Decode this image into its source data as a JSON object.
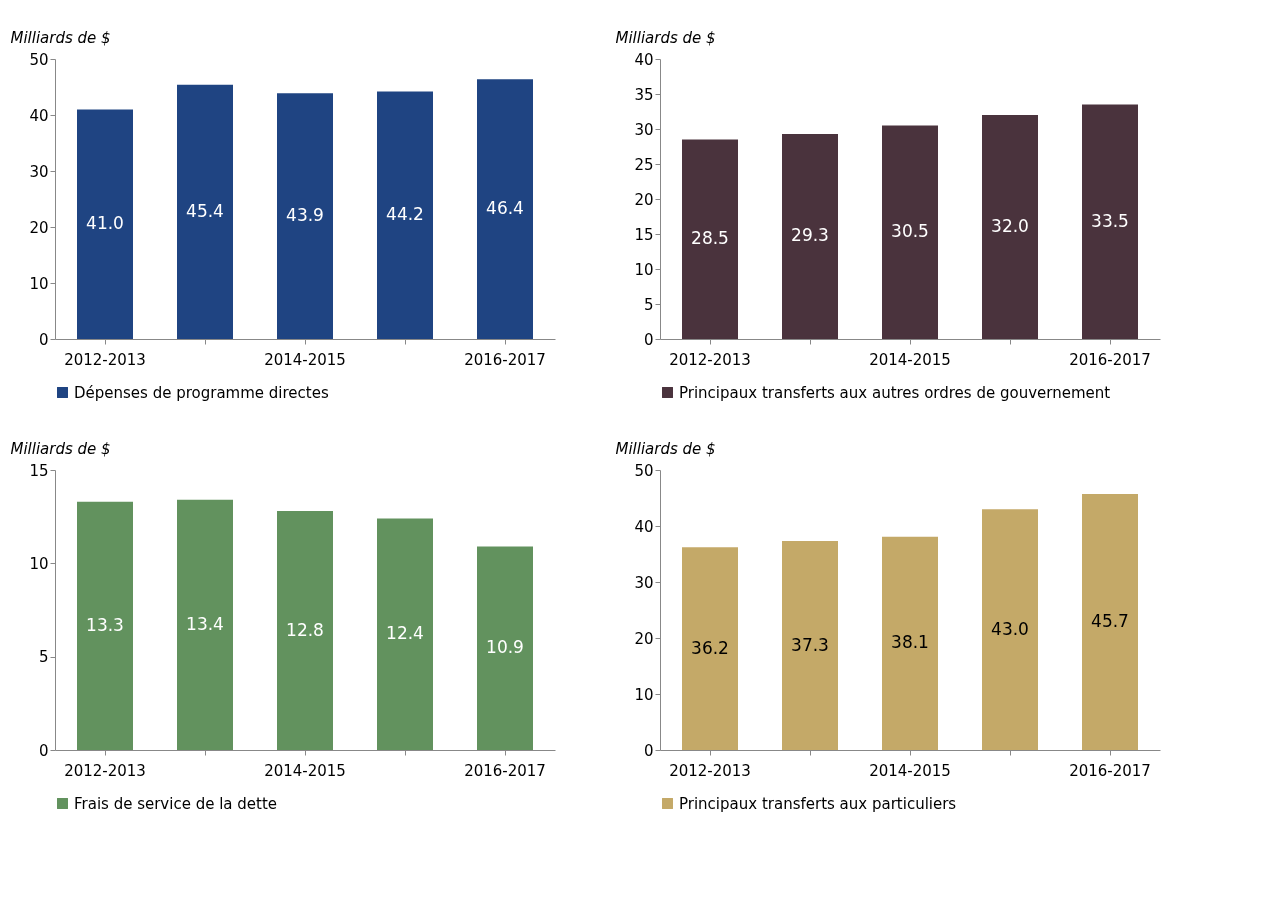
{
  "chart_data": [
    {
      "type": "bar",
      "ylabel": "Milliards de $",
      "categories": [
        "2012-2013",
        null,
        "2014-2015",
        null,
        "2016-2017"
      ],
      "series": [
        {
          "name": "Dépenses de programme directes",
          "color": "#1f4482",
          "values": [
            41.0,
            45.4,
            43.9,
            44.2,
            46.4
          ],
          "value_labels": [
            "41.0",
            "45.4",
            "43.9",
            "44.2",
            "46.4"
          ]
        }
      ],
      "ylim": [
        0,
        50
      ],
      "yticks": [
        0,
        10,
        20,
        30,
        40,
        50
      ],
      "legend": "bottom",
      "grid": false,
      "data_labels": true
    },
    {
      "type": "bar",
      "ylabel": "Milliards de $",
      "categories": [
        "2012-2013",
        null,
        "2014-2015",
        null,
        "2016-2017"
      ],
      "series": [
        {
          "name": "Principaux transferts aux autres ordres de gouvernement",
          "color": "#4a333d",
          "values": [
            28.5,
            29.3,
            30.5,
            32.0,
            33.5
          ],
          "value_labels": [
            "28.5",
            "29.3",
            "30.5",
            "32.0",
            "33.5"
          ]
        }
      ],
      "ylim": [
        0,
        40
      ],
      "yticks": [
        0,
        5,
        10,
        15,
        20,
        25,
        30,
        35,
        40
      ],
      "legend": "bottom",
      "grid": false,
      "data_labels": true
    },
    {
      "type": "bar",
      "ylabel": "Milliards de $",
      "categories": [
        "2012-2013",
        null,
        "2014-2015",
        null,
        "2016-2017"
      ],
      "series": [
        {
          "name": "Frais de service de la dette",
          "color": "#62925e",
          "values": [
            13.3,
            13.4,
            12.8,
            12.4,
            10.9
          ],
          "value_labels": [
            "13.3",
            "13.4",
            "12.8",
            "12.4",
            "10.9"
          ]
        }
      ],
      "ylim": [
        0,
        15
      ],
      "yticks": [
        0,
        5,
        10,
        15
      ],
      "legend": "bottom",
      "grid": false,
      "data_labels": true
    },
    {
      "type": "bar",
      "ylabel": "Milliards de $",
      "categories": [
        "2012-2013",
        null,
        "2014-2015",
        null,
        "2016-2017"
      ],
      "series": [
        {
          "name": "Principaux transferts aux particuliers",
          "color": "#c4a968",
          "values": [
            36.2,
            37.3,
            38.1,
            43.0,
            45.7
          ],
          "value_labels": [
            "36.2",
            "37.3",
            "38.1",
            "43.0",
            "45.7"
          ]
        }
      ],
      "ylim": [
        0,
        50
      ],
      "yticks": [
        0,
        10,
        20,
        30,
        40,
        50
      ],
      "legend": "bottom",
      "grid": false,
      "data_labels": true
    }
  ]
}
